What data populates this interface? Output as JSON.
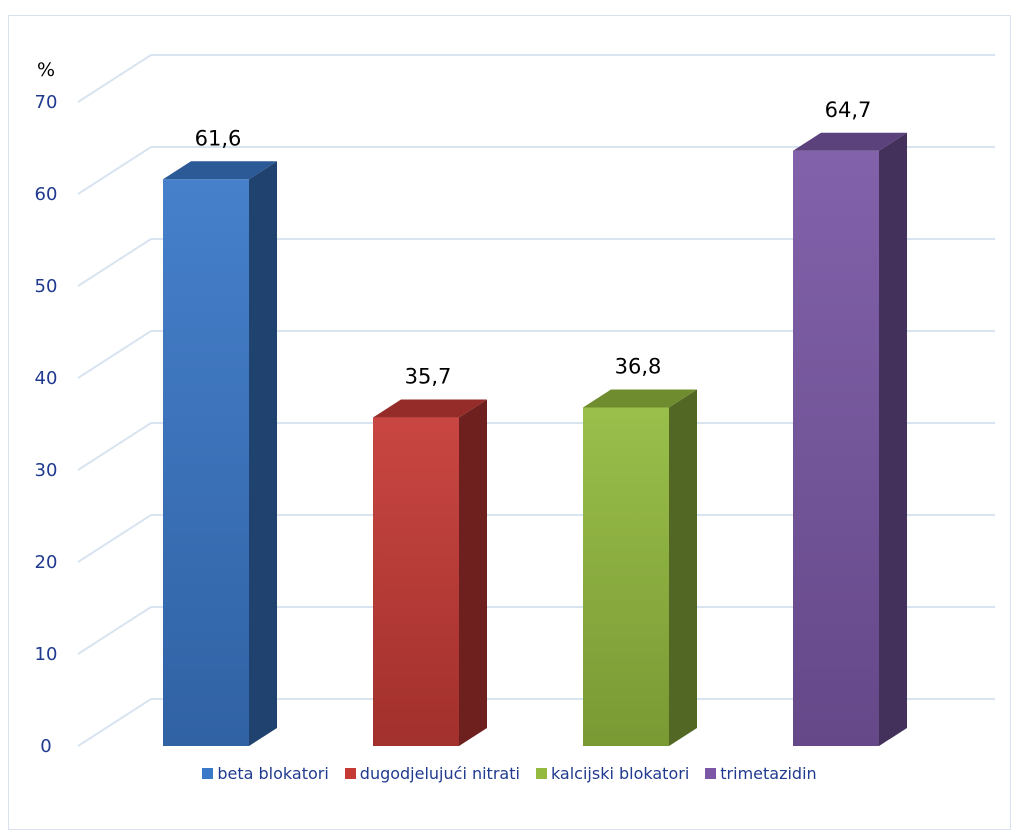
{
  "chart_data": {
    "type": "bar",
    "title": "",
    "ylabel": "%",
    "xlabel": "",
    "ylim": [
      0,
      70
    ],
    "yticks": [
      "0",
      "10",
      "20",
      "30",
      "40",
      "50",
      "60",
      "70"
    ],
    "categories": [
      "beta blokatori",
      "dugodjelujući nitrati",
      "kalcijski blokatori",
      "trimetazidin"
    ],
    "values": [
      61.6,
      35.7,
      36.8,
      64.7
    ],
    "value_labels": [
      "61,6",
      "35,7",
      "36,8",
      "64,7"
    ],
    "colors": [
      "#3a78c8",
      "#c63a36",
      "#94bb3f",
      "#7a58a6"
    ],
    "grid": true,
    "legend": "bottom",
    "style": "3d-column"
  }
}
